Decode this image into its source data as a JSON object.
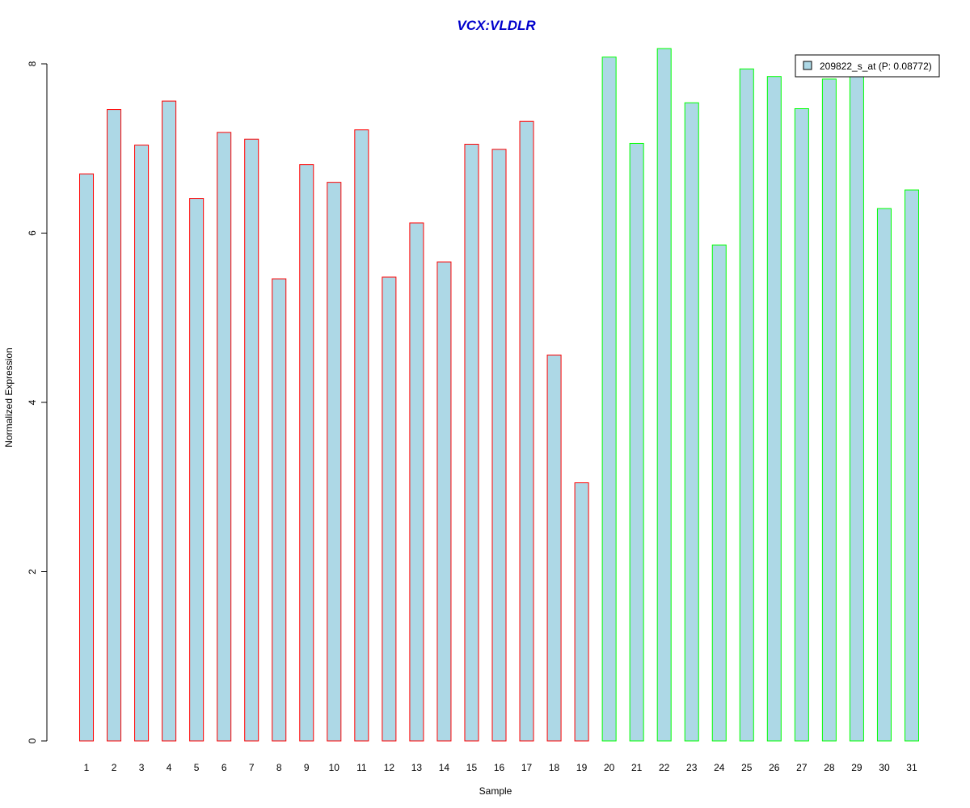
{
  "chart_data": {
    "type": "bar",
    "title": "VCX:VLDLR",
    "xlabel": "Sample",
    "ylabel": "Normalized Expression",
    "categories": [
      "1",
      "2",
      "3",
      "4",
      "5",
      "6",
      "7",
      "8",
      "9",
      "10",
      "11",
      "12",
      "13",
      "14",
      "15",
      "16",
      "17",
      "18",
      "19",
      "20",
      "21",
      "22",
      "23",
      "24",
      "25",
      "26",
      "27",
      "28",
      "29",
      "30",
      "31"
    ],
    "values": [
      6.7,
      7.46,
      7.04,
      7.56,
      6.41,
      7.19,
      7.11,
      5.46,
      6.81,
      6.6,
      7.22,
      5.48,
      6.12,
      5.66,
      7.05,
      6.99,
      7.32,
      4.56,
      3.05,
      8.08,
      7.06,
      8.18,
      7.54,
      5.86,
      7.94,
      7.85,
      7.47,
      7.82,
      7.88,
      6.29,
      6.51
    ],
    "groups": [
      1,
      1,
      1,
      1,
      1,
      1,
      1,
      1,
      1,
      1,
      1,
      1,
      1,
      1,
      1,
      1,
      1,
      1,
      1,
      2,
      2,
      2,
      2,
      2,
      2,
      2,
      2,
      2,
      2,
      2,
      2
    ],
    "ylim": [
      0,
      8
    ],
    "yticks": [
      0,
      2,
      4,
      6,
      8
    ],
    "grid": false,
    "legend": {
      "position": "top-right",
      "entries": [
        "209822_s_at (P: 0.08772)"
      ]
    },
    "colors": {
      "bar_fill": "#add8e6",
      "group1_border": "#ff0000",
      "group2_border": "#00ff00",
      "title": "#0000cc",
      "axis": "#000000"
    }
  }
}
